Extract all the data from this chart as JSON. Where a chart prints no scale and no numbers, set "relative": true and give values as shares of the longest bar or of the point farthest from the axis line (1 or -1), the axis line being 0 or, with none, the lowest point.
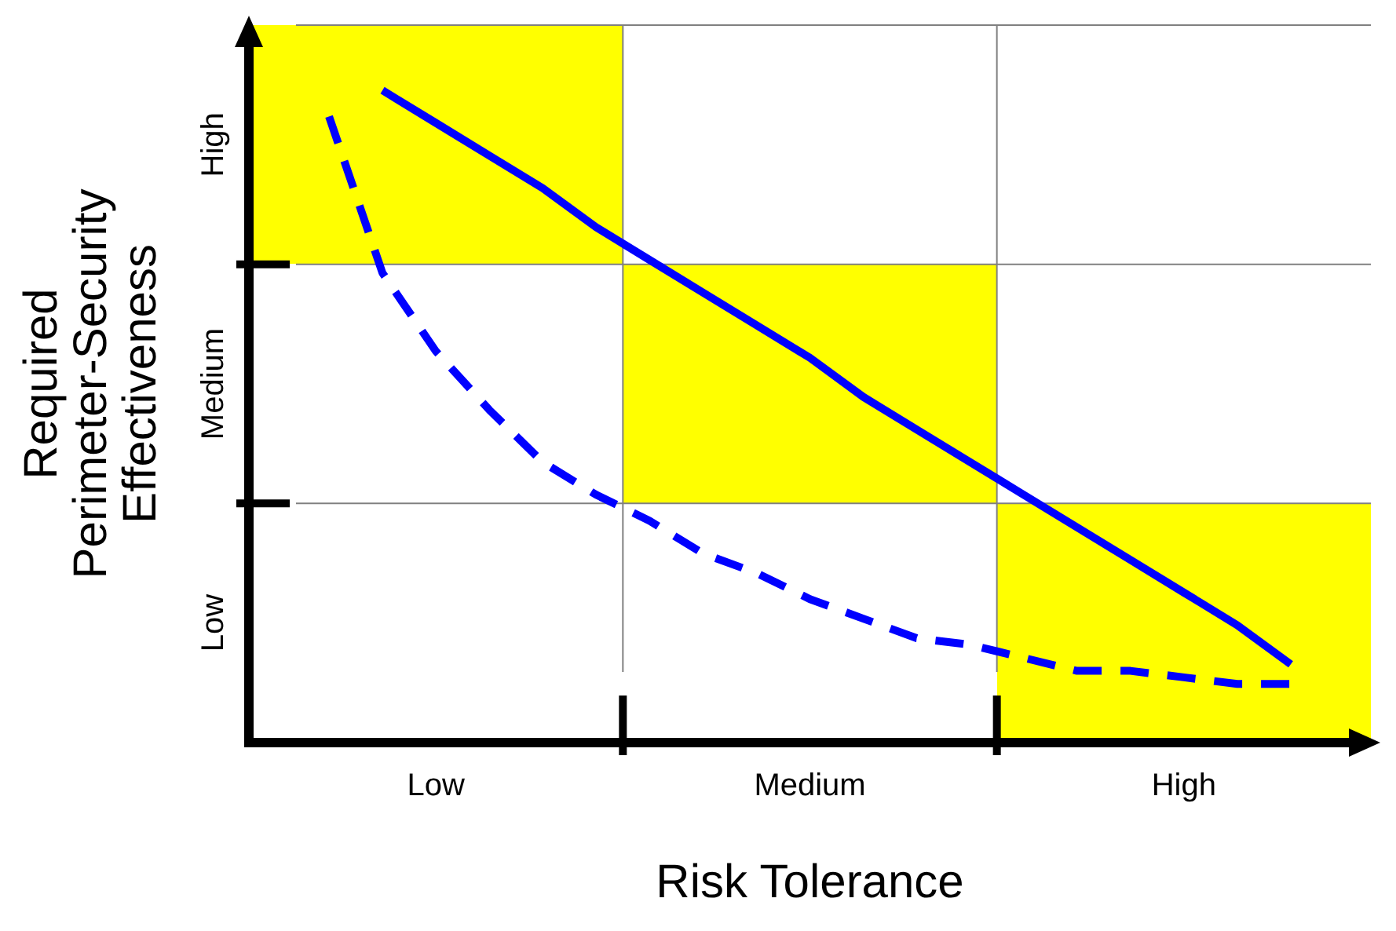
{
  "chart_data": {
    "type": "line",
    "relative": true,
    "xlabel": "Risk Tolerance",
    "ylabel": "Required Perimeter-Security Effectiveness",
    "categories": [
      null,
      null,
      null,
      "Low",
      null,
      null,
      null,
      null,
      null,
      null,
      "Medium",
      null,
      null,
      null,
      null,
      null,
      null,
      "High",
      null,
      null,
      null
    ],
    "annotations": [
      "Low",
      "Medium",
      "High"
    ],
    "grid": true,
    "series": [
      {
        "color": "#0000ff",
        "line_style": "solid",
        "values": [
          null,
          null,
          1,
          0.95,
          0.9,
          0.85,
          0.79,
          0.74,
          0.69,
          0.64,
          0.59,
          0.53,
          0.48,
          0.43,
          0.38,
          0.33,
          0.28,
          0.23,
          0.18,
          0.12,
          null
        ]
      },
      {
        "color": "#0000ff",
        "line_style": "dashed",
        "values": [
          null,
          0.96,
          0.72,
          0.6,
          0.51,
          0.43,
          0.38,
          0.34,
          0.29,
          0.26,
          0.22,
          0.19,
          0.16,
          0.15,
          0.13,
          0.11,
          0.11,
          0.1,
          0.09,
          0.09,
          null
        ]
      }
    ]
  }
}
